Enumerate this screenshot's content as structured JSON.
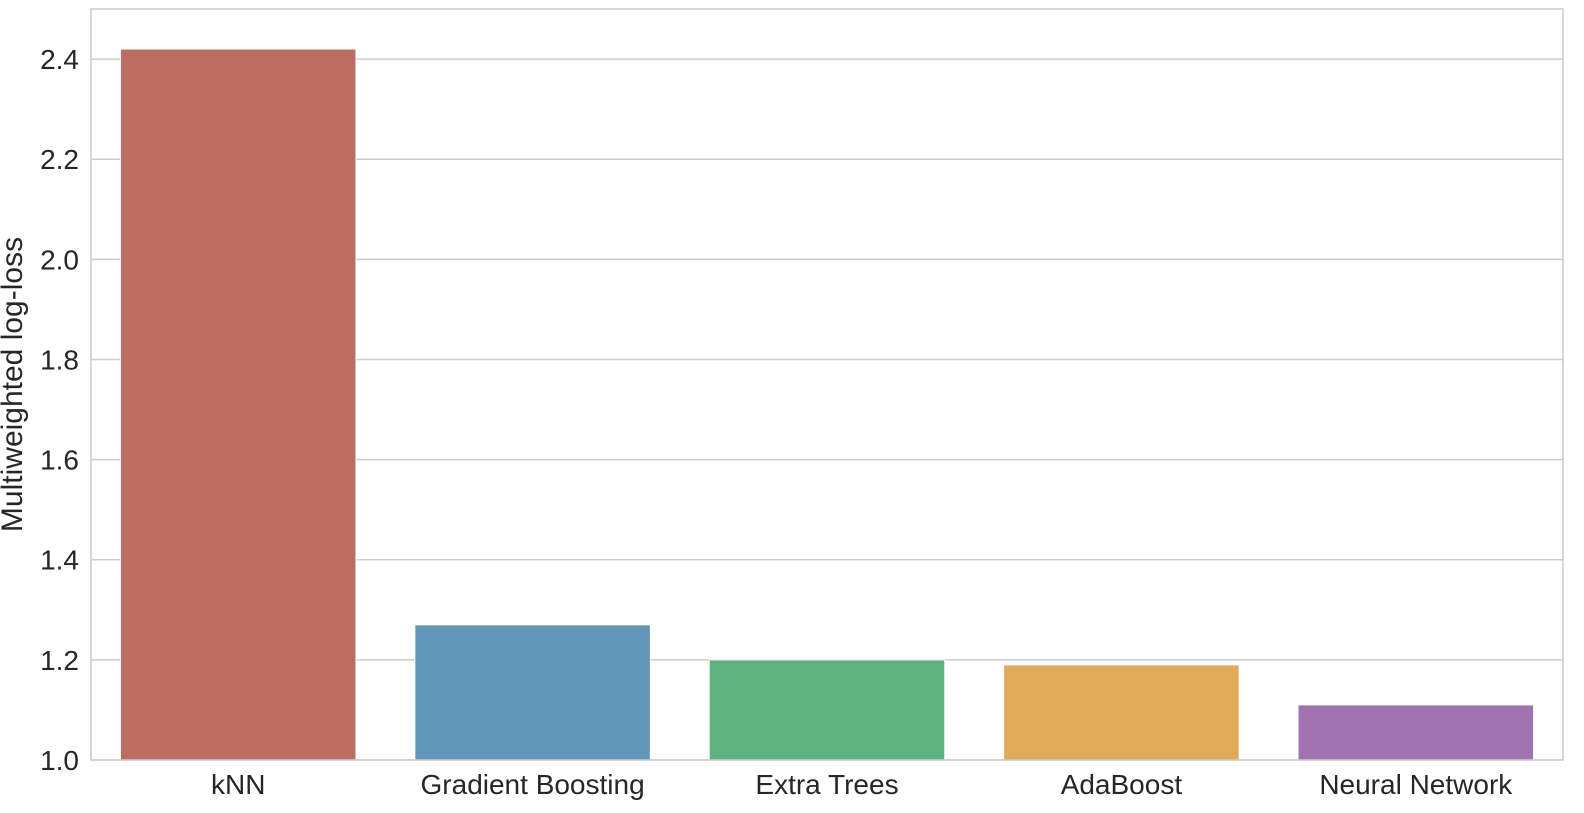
{
  "chart_data": {
    "type": "bar",
    "categories": [
      "kNN",
      "Gradient Boosting",
      "Extra Trees",
      "AdaBoost",
      "Neural Network"
    ],
    "values": [
      2.42,
      1.27,
      1.2,
      1.19,
      1.11
    ],
    "colors": [
      "#bd6c62",
      "#6196b9",
      "#5fb17f",
      "#dfab59",
      "#a174b1"
    ],
    "title": "",
    "xlabel": "",
    "ylabel": "Multiweighted log-loss",
    "ylim": [
      1.0,
      2.5
    ],
    "yticks": [
      1.0,
      1.2,
      1.4,
      1.6,
      1.8,
      2.0,
      2.2,
      2.4
    ],
    "ytick_labels": [
      "1.0",
      "1.2",
      "1.4",
      "1.6",
      "1.8",
      "2.0",
      "2.2",
      "2.4"
    ],
    "grid": "horizontal",
    "legend": "none"
  }
}
